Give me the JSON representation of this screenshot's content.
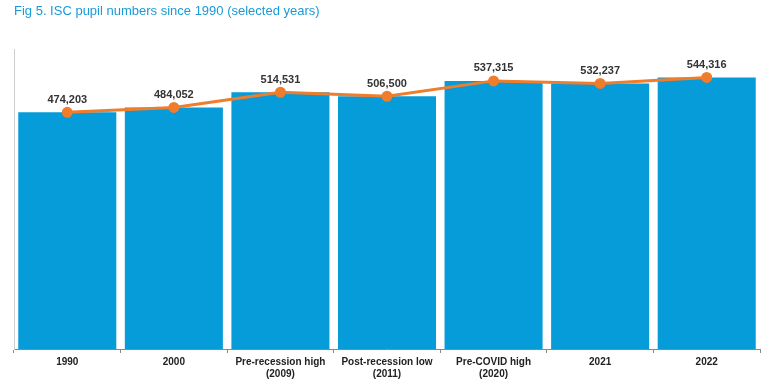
{
  "chart_data": {
    "type": "bar",
    "title": "Fig 5. ISC pupil numbers since 1990 (selected years)",
    "categories": [
      [
        "1990"
      ],
      [
        "2000"
      ],
      [
        "Pre-recession high",
        "(2009)"
      ],
      [
        "Post-recession low",
        "(2011)"
      ],
      [
        "Pre-COVID high",
        "(2020)"
      ],
      [
        "2021"
      ],
      [
        "2022"
      ]
    ],
    "series": [
      {
        "type": "bar",
        "color": "#069bd9",
        "values": [
          474203,
          484052,
          514531,
          506500,
          537315,
          532237,
          544316
        ]
      },
      {
        "type": "line",
        "color": "#ef7d2c",
        "marker": "circle",
        "line_style": "solid",
        "values": [
          474203,
          484052,
          514531,
          506500,
          537315,
          532237,
          544316
        ],
        "value_labels": [
          "474,203",
          "484,052",
          "514,531",
          "506,500",
          "537,315",
          "532,237",
          "544,316"
        ]
      }
    ],
    "ylim": [
      0,
      600000
    ],
    "grid": false,
    "data_labels": true,
    "tick_labels": "x"
  }
}
